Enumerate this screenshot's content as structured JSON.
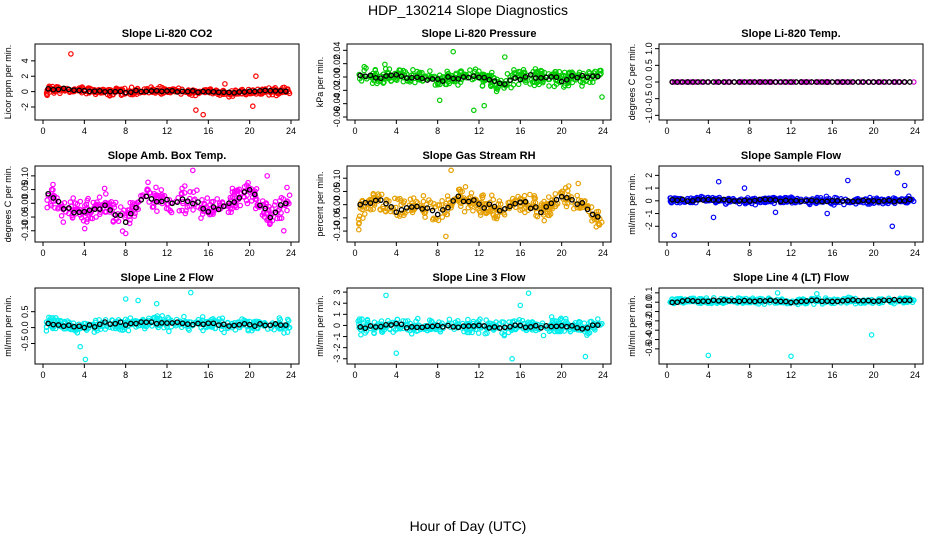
{
  "page": {
    "title": "HDP_130214  Slope Diagnostics",
    "xlabel": "Hour of Day (UTC)"
  },
  "chart_data": [
    {
      "type": "scatter",
      "title": "Slope Li-820 CO2",
      "ylabel": "Licor ppm per min.",
      "color": "#ff0000",
      "xlim": [
        0,
        24
      ],
      "xticks": [
        0,
        4,
        8,
        12,
        16,
        20,
        24
      ],
      "ylim": [
        -3.3,
        5.8
      ],
      "yticks": [
        -2,
        0,
        2,
        4
      ],
      "spread": 0.45,
      "outliers": [
        [
          2.7,
          4.9
        ],
        [
          15.5,
          -3.0
        ],
        [
          20.3,
          -1.9
        ],
        [
          20.6,
          2.0
        ],
        [
          14.8,
          -2.4
        ],
        [
          17.6,
          1.0
        ]
      ],
      "mean": [
        [
          0.5,
          0.3
        ],
        [
          2,
          0.3
        ],
        [
          4,
          0.1
        ],
        [
          6,
          0.0
        ],
        [
          8,
          -0.1
        ],
        [
          10,
          0.1
        ],
        [
          12,
          0.1
        ],
        [
          14,
          0.0
        ],
        [
          16,
          0.0
        ],
        [
          18,
          -0.1
        ],
        [
          20,
          0.0
        ],
        [
          22,
          0.1
        ],
        [
          24,
          0.0
        ]
      ]
    },
    {
      "type": "scatter",
      "title": "Slope Li-820 Pressure",
      "ylabel": "kPa per min.",
      "color": "#00cc00",
      "xlim": [
        0,
        24
      ],
      "xticks": [
        0,
        4,
        8,
        12,
        16,
        20,
        24
      ],
      "ylim": [
        -0.06,
        0.045
      ],
      "yticks": [
        -0.06,
        -0.04,
        -0.02,
        0.0,
        0.02,
        0.04
      ],
      "spread": 0.012,
      "outliers": [
        [
          9.5,
          0.038
        ],
        [
          11.5,
          -0.05
        ],
        [
          12.5,
          -0.043
        ],
        [
          8.2,
          -0.035
        ],
        [
          23.9,
          -0.03
        ],
        [
          14.5,
          0.03
        ]
      ],
      "mean": [
        [
          0.5,
          0.002
        ],
        [
          2,
          0.0
        ],
        [
          4,
          0.003
        ],
        [
          6,
          0.0
        ],
        [
          8,
          -0.005
        ],
        [
          10,
          0.0
        ],
        [
          12,
          0.003
        ],
        [
          14,
          -0.012
        ],
        [
          16,
          0.0
        ],
        [
          18,
          0.0
        ],
        [
          20,
          -0.003
        ],
        [
          22,
          0.0
        ],
        [
          24,
          0.0
        ]
      ]
    },
    {
      "type": "scatter",
      "title": "Slope Li-820 Temp.",
      "ylabel": "degrees C per min.",
      "color": "#cc00cc",
      "xlim": [
        0,
        24
      ],
      "xticks": [
        0,
        4,
        8,
        12,
        16,
        20,
        24
      ],
      "ylim": [
        -1.05,
        1.05
      ],
      "yticks": [
        -1.0,
        -0.5,
        0.0,
        0.5,
        1.0
      ],
      "spread": 0.0,
      "outliers": [],
      "mean": [
        [
          0.5,
          0.0
        ],
        [
          2,
          0.0
        ],
        [
          4,
          0.0
        ],
        [
          6,
          0.0
        ],
        [
          8,
          0.0
        ],
        [
          10,
          0.0
        ],
        [
          12,
          0.0
        ],
        [
          14,
          0.0
        ],
        [
          16,
          0.0
        ],
        [
          18,
          0.0
        ],
        [
          20,
          0.0
        ],
        [
          22,
          0.0
        ],
        [
          24,
          0.0
        ]
      ]
    },
    {
      "type": "scatter",
      "title": "Slope Amb. Box Temp.",
      "ylabel": "degrees C per min.",
      "color": "#ff00ff",
      "xlim": [
        0,
        24
      ],
      "xticks": [
        0,
        4,
        8,
        12,
        16,
        20,
        24
      ],
      "ylim": [
        -0.13,
        0.125
      ],
      "yticks": [
        -0.1,
        -0.05,
        0.0,
        0.05,
        0.1
      ],
      "spread": 0.045,
      "outliers": [
        [
          14.5,
          0.12
        ],
        [
          8.0,
          -0.11
        ],
        [
          23.3,
          -0.1
        ],
        [
          21.7,
          0.1
        ]
      ],
      "mean": [
        [
          0.5,
          0.04
        ],
        [
          2,
          -0.02
        ],
        [
          4,
          -0.03
        ],
        [
          6,
          0.0
        ],
        [
          8,
          -0.06
        ],
        [
          10,
          0.03
        ],
        [
          12,
          0.0
        ],
        [
          14,
          0.02
        ],
        [
          16,
          -0.03
        ],
        [
          18,
          0.0
        ],
        [
          20,
          0.05
        ],
        [
          22,
          -0.05
        ],
        [
          24,
          0.02
        ]
      ]
    },
    {
      "type": "scatter",
      "title": "Slope Gas Stream RH",
      "ylabel": "percent per min.",
      "color": "#e6a000",
      "xlim": [
        0,
        24
      ],
      "xticks": [
        0,
        4,
        8,
        12,
        16,
        20,
        24
      ],
      "ylim": [
        -0.13,
        0.135
      ],
      "yticks": [
        -0.1,
        -0.05,
        0.0,
        0.05,
        0.1
      ],
      "spread": 0.04,
      "outliers": [
        [
          9.3,
          0.13
        ],
        [
          8.8,
          -0.12
        ],
        [
          21.6,
          0.08
        ]
      ],
      "mean": [
        [
          0.5,
          0.0
        ],
        [
          2,
          0.02
        ],
        [
          4,
          -0.02
        ],
        [
          6,
          0.0
        ],
        [
          8,
          -0.04
        ],
        [
          10,
          0.03
        ],
        [
          12,
          0.0
        ],
        [
          14,
          -0.02
        ],
        [
          16,
          0.01
        ],
        [
          18,
          -0.02
        ],
        [
          20,
          0.03
        ],
        [
          22,
          0.0
        ],
        [
          24,
          -0.07
        ]
      ]
    },
    {
      "type": "scatter",
      "title": "Slope Sample Flow",
      "ylabel": "ml/min per min.",
      "color": "#0000ff",
      "xlim": [
        0,
        24
      ],
      "xticks": [
        0,
        4,
        8,
        12,
        16,
        20,
        24
      ],
      "ylim": [
        -3.0,
        2.5
      ],
      "yticks": [
        -2,
        -1,
        0,
        1,
        2
      ],
      "spread": 0.25,
      "outliers": [
        [
          0.7,
          -2.7
        ],
        [
          21.8,
          -2.0
        ],
        [
          22.3,
          2.2
        ],
        [
          5.0,
          1.5
        ],
        [
          4.5,
          -1.3
        ],
        [
          17.5,
          1.6
        ],
        [
          15.5,
          -1.0
        ],
        [
          23.0,
          1.2
        ],
        [
          7.5,
          1.0
        ],
        [
          10.5,
          -0.9
        ]
      ],
      "mean": [
        [
          0.5,
          0.1
        ],
        [
          2,
          0.0
        ],
        [
          4,
          0.1
        ],
        [
          6,
          0.0
        ],
        [
          8,
          0.0
        ],
        [
          10,
          0.1
        ],
        [
          12,
          0.0
        ],
        [
          14,
          0.0
        ],
        [
          16,
          0.0
        ],
        [
          18,
          0.0
        ],
        [
          20,
          0.0
        ],
        [
          22,
          0.0
        ],
        [
          24,
          0.1
        ]
      ]
    },
    {
      "type": "scatter",
      "title": "Slope Line 2 Flow",
      "ylabel": "ml/min per min.",
      "color": "#00eeee",
      "xlim": [
        0,
        24
      ],
      "xticks": [
        0,
        4,
        8,
        12,
        16,
        20,
        24
      ],
      "ylim": [
        -1.05,
        1.15
      ],
      "yticks": [
        -0.5,
        0.0,
        0.5
      ],
      "spread": 0.2,
      "outliers": [
        [
          4.1,
          -1.0
        ],
        [
          14.3,
          1.1
        ],
        [
          8.0,
          0.9
        ],
        [
          9.2,
          0.85
        ],
        [
          11.0,
          0.75
        ],
        [
          3.6,
          -0.6
        ]
      ],
      "mean": [
        [
          0.5,
          0.15
        ],
        [
          2,
          0.05
        ],
        [
          4,
          0.0
        ],
        [
          6,
          0.15
        ],
        [
          8,
          0.1
        ],
        [
          10,
          0.15
        ],
        [
          12,
          0.15
        ],
        [
          14,
          0.1
        ],
        [
          16,
          0.15
        ],
        [
          18,
          0.05
        ],
        [
          20,
          0.1
        ],
        [
          22,
          0.1
        ],
        [
          24,
          0.05
        ]
      ]
    },
    {
      "type": "scatter",
      "title": "Slope Line 3 Flow",
      "ylabel": "ml/min per min.",
      "color": "#00eeee",
      "xlim": [
        0,
        24
      ],
      "xticks": [
        0,
        4,
        8,
        12,
        16,
        20,
        24
      ],
      "ylim": [
        -3.2,
        3.1
      ],
      "yticks": [
        -3,
        -2,
        -1,
        0,
        1,
        2,
        3
      ],
      "spread": 0.6,
      "outliers": [
        [
          3.0,
          2.7
        ],
        [
          16.8,
          2.9
        ],
        [
          15.2,
          -3.0
        ],
        [
          4.0,
          -2.5
        ],
        [
          22.3,
          -2.8
        ],
        [
          16.0,
          1.8
        ]
      ],
      "mean": [
        [
          0.5,
          -0.2
        ],
        [
          2,
          -0.1
        ],
        [
          4,
          0.1
        ],
        [
          6,
          -0.2
        ],
        [
          8,
          0.0
        ],
        [
          10,
          -0.1
        ],
        [
          12,
          0.0
        ],
        [
          14,
          -0.2
        ],
        [
          16,
          0.0
        ],
        [
          18,
          -0.2
        ],
        [
          20,
          0.0
        ],
        [
          22,
          -0.3
        ],
        [
          24,
          0.2
        ]
      ]
    },
    {
      "type": "scatter",
      "title": "Slope Line 4 (LT) Flow",
      "ylabel": "ml/min per min.",
      "color": "#00eeee",
      "xlim": [
        0,
        24
      ],
      "xticks": [
        0,
        4,
        8,
        12,
        16,
        20,
        24
      ],
      "ylim": [
        -0.63,
        0.12
      ],
      "yticks": [
        -0.5,
        -0.4,
        -0.3,
        -0.2,
        -0.1,
        0.0,
        0.1
      ],
      "spread": 0.03,
      "outliers": [
        [
          4.0,
          -0.57
        ],
        [
          12.0,
          -0.58
        ],
        [
          19.8,
          -0.35
        ],
        [
          10.7,
          0.1
        ],
        [
          14.5,
          0.09
        ]
      ],
      "mean": [
        [
          0.5,
          0.0
        ],
        [
          2,
          0.02
        ],
        [
          4,
          0.01
        ],
        [
          6,
          0.02
        ],
        [
          8,
          0.01
        ],
        [
          10,
          0.02
        ],
        [
          12,
          0.0
        ],
        [
          14,
          0.02
        ],
        [
          16,
          0.01
        ],
        [
          18,
          0.02
        ],
        [
          20,
          0.01
        ],
        [
          22,
          0.02
        ],
        [
          24,
          0.02
        ]
      ]
    }
  ]
}
